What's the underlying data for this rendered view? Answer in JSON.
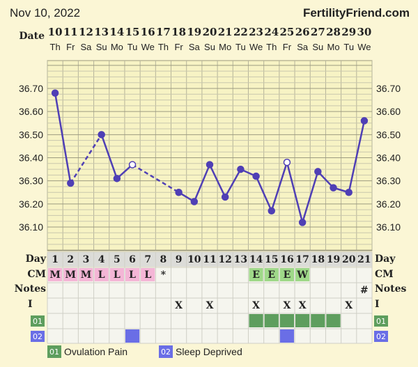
{
  "header": {
    "date_title": "Nov 10, 2022",
    "brand": "FertilityFriend.com"
  },
  "labels": {
    "date": "Date",
    "day": "Day",
    "cm": "CM",
    "notes": "Notes",
    "i": "I"
  },
  "legend": [
    {
      "code": "01",
      "label": "Ovulation Pain",
      "color": "#5e9e5e"
    },
    {
      "code": "02",
      "label": "Sleep Deprived",
      "color": "#6a6ee6"
    }
  ],
  "chart_data": {
    "type": "line",
    "dates": [
      "10",
      "11",
      "12",
      "13",
      "14",
      "15",
      "16",
      "17",
      "18",
      "19",
      "20",
      "21",
      "22",
      "23",
      "24",
      "25",
      "26",
      "27",
      "28",
      "29",
      "30"
    ],
    "weekdays": [
      "Th",
      "Fr",
      "Sa",
      "Su",
      "Mo",
      "Tu",
      "We",
      "Th",
      "Fr",
      "Sa",
      "Su",
      "Mo",
      "Tu",
      "We",
      "Th",
      "Fr",
      "Sa",
      "Su",
      "Mo",
      "Tu",
      "We"
    ],
    "days": [
      1,
      2,
      3,
      4,
      5,
      6,
      7,
      8,
      9,
      10,
      11,
      12,
      13,
      14,
      15,
      16,
      17,
      18,
      19,
      20,
      21
    ],
    "yticks": [
      "36.70",
      "36.60",
      "36.50",
      "36.40",
      "36.30",
      "36.20",
      "36.10"
    ],
    "ylim": [
      36.0,
      36.8
    ],
    "temps": [
      36.68,
      36.29,
      null,
      36.5,
      36.31,
      36.37,
      null,
      null,
      36.25,
      36.21,
      36.37,
      36.23,
      36.35,
      36.32,
      36.17,
      36.38,
      36.12,
      36.34,
      36.27,
      36.25,
      36.56
    ],
    "open_points": [
      6,
      16
    ],
    "dashed_segments": [
      [
        2,
        4
      ],
      [
        6,
        9
      ]
    ],
    "cm": [
      "M",
      "M",
      "M",
      "L",
      "L",
      "L",
      "L",
      "*",
      "",
      "",
      "",
      "",
      "",
      "E",
      "E",
      "E",
      "W",
      "",
      "",
      "",
      ""
    ],
    "notes": [
      "",
      "",
      "",
      "",
      "",
      "",
      "",
      "",
      "",
      "",
      "",
      "",
      "",
      "",
      "",
      "",
      "",
      "",
      "",
      "",
      "#"
    ],
    "intercourse": [
      "",
      "",
      "",
      "",
      "",
      "",
      "",
      "",
      "X",
      "",
      "X",
      "",
      "",
      "X",
      "",
      "X",
      "X",
      "",
      "",
      "X",
      ""
    ],
    "symptom01": [
      14,
      15,
      16,
      17,
      18,
      19
    ],
    "symptom02": [
      6,
      16
    ]
  }
}
